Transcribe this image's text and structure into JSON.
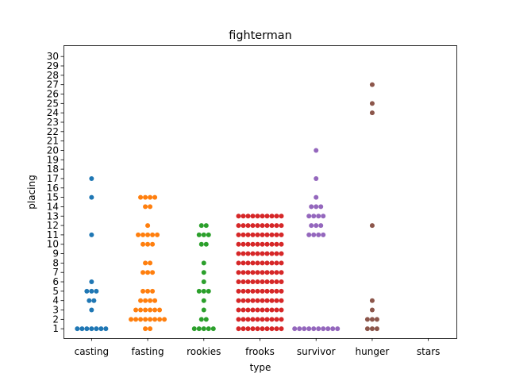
{
  "chart_data": {
    "type": "scatter",
    "style": "swarm",
    "title": "fighterman",
    "xlabel": "type",
    "ylabel": "placing",
    "categories": [
      "casting",
      "fasting",
      "rookies",
      "frooks",
      "survivor",
      "hunger",
      "stars"
    ],
    "yticks": [
      1,
      2,
      3,
      4,
      5,
      6,
      7,
      8,
      9,
      10,
      11,
      12,
      13,
      14,
      15,
      16,
      17,
      18,
      19,
      20,
      21,
      22,
      23,
      24,
      25,
      26,
      27,
      28,
      29,
      30
    ],
    "ylim": [
      0,
      31.2
    ],
    "grid": false,
    "legend": "none",
    "colors": {
      "casting": "#1f77b4",
      "fasting": "#ff7f0e",
      "rookies": "#2ca02c",
      "frooks": "#d62728",
      "survivor": "#9467bd",
      "hunger": "#8c564b",
      "stars": "#e377c2"
    },
    "series": [
      {
        "category": "casting",
        "placing_counts": {
          "1": 7,
          "3": 1,
          "4": 2,
          "5": 3,
          "6": 1,
          "11": 1,
          "15": 1,
          "17": 1
        }
      },
      {
        "category": "fasting",
        "placing_counts": {
          "1": 2,
          "2": 8,
          "3": 6,
          "4": 4,
          "5": 3,
          "7": 3,
          "8": 2,
          "10": 3,
          "11": 5,
          "12": 1,
          "14": 2,
          "15": 4
        }
      },
      {
        "category": "rookies",
        "placing_counts": {
          "1": 5,
          "2": 2,
          "3": 1,
          "4": 1,
          "5": 3,
          "6": 1,
          "7": 1,
          "8": 1,
          "10": 2,
          "11": 3,
          "12": 2
        }
      },
      {
        "category": "frooks",
        "placing_counts": {
          "1": 10,
          "2": 10,
          "3": 10,
          "4": 10,
          "5": 10,
          "6": 10,
          "7": 10,
          "8": 10,
          "9": 10,
          "10": 10,
          "11": 10,
          "12": 10,
          "13": 10
        }
      },
      {
        "category": "survivor",
        "placing_counts": {
          "1": 10,
          "11": 4,
          "12": 3,
          "13": 4,
          "14": 3,
          "15": 1,
          "17": 1,
          "20": 1
        }
      },
      {
        "category": "hunger",
        "placing_counts": {
          "1": 3,
          "2": 3,
          "3": 1,
          "4": 1,
          "12": 1,
          "24": 1,
          "25": 1,
          "27": 1
        }
      },
      {
        "category": "stars",
        "placing_counts": {}
      }
    ]
  }
}
